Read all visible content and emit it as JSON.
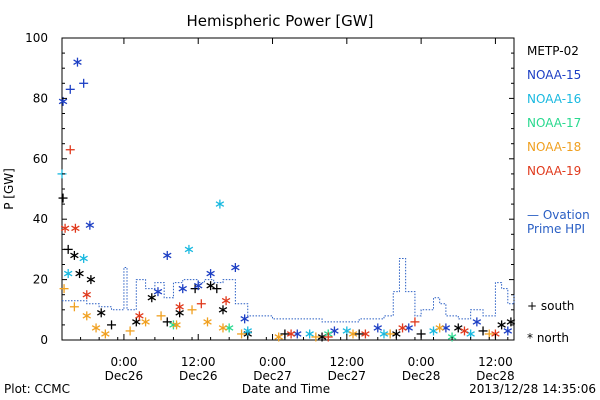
{
  "chart_data": {
    "type": "scatter",
    "title": "Hemispheric Power [GW]",
    "xlabel": "Date and Time",
    "ylabel": "P [GW]",
    "ylim": [
      0,
      100
    ],
    "xlim": [
      "2013-12-25 14:00",
      "2013-12-28 15:00"
    ],
    "yticks": [
      0,
      20,
      40,
      60,
      80,
      100
    ],
    "xticks": [
      {
        "at": "2013-12-26 00:00",
        "time": "0:00",
        "day": "Dec26"
      },
      {
        "at": "2013-12-26 12:00",
        "time": "12:00",
        "day": "Dec26"
      },
      {
        "at": "2013-12-27 00:00",
        "time": "0:00",
        "day": "Dec27"
      },
      {
        "at": "2013-12-27 12:00",
        "time": "12:00",
        "day": "Dec27"
      },
      {
        "at": "2013-12-28 00:00",
        "time": "0:00",
        "day": "Dec28"
      },
      {
        "at": "2013-12-28 12:00",
        "time": "12:00",
        "day": "Dec28"
      }
    ],
    "grid": false,
    "legend_position": "right",
    "series": [
      {
        "name": "METP-02",
        "color": "#000000",
        "points": [
          {
            "x": "2013-12-25 14:10",
            "y": 47,
            "hemisphere": "south"
          },
          {
            "x": "2013-12-25 15:00",
            "y": 30,
            "hemisphere": "south"
          },
          {
            "x": "2013-12-25 16:00",
            "y": 28,
            "hemisphere": "north"
          },
          {
            "x": "2013-12-25 16:50",
            "y": 22,
            "hemisphere": "north"
          },
          {
            "x": "2013-12-25 18:40",
            "y": 20,
            "hemisphere": "north"
          },
          {
            "x": "2013-12-25 20:20",
            "y": 9,
            "hemisphere": "north"
          },
          {
            "x": "2013-12-25 22:00",
            "y": 5,
            "hemisphere": "south"
          },
          {
            "x": "2013-12-26 02:00",
            "y": 6,
            "hemisphere": "north"
          },
          {
            "x": "2013-12-26 04:30",
            "y": 14,
            "hemisphere": "north"
          },
          {
            "x": "2013-12-26 07:00",
            "y": 6,
            "hemisphere": "south"
          },
          {
            "x": "2013-12-26 09:00",
            "y": 9,
            "hemisphere": "north"
          },
          {
            "x": "2013-12-26 11:30",
            "y": 17,
            "hemisphere": "south"
          },
          {
            "x": "2013-12-26 14:00",
            "y": 18,
            "hemisphere": "north"
          },
          {
            "x": "2013-12-26 15:00",
            "y": 17,
            "hemisphere": "south"
          },
          {
            "x": "2013-12-26 16:00",
            "y": 10,
            "hemisphere": "north"
          },
          {
            "x": "2013-12-26 20:00",
            "y": 2,
            "hemisphere": "north"
          },
          {
            "x": "2013-12-27 02:00",
            "y": 2,
            "hemisphere": "south"
          },
          {
            "x": "2013-12-27 08:00",
            "y": 1,
            "hemisphere": "north"
          },
          {
            "x": "2013-12-27 14:00",
            "y": 2,
            "hemisphere": "south"
          },
          {
            "x": "2013-12-27 20:00",
            "y": 2,
            "hemisphere": "north"
          },
          {
            "x": "2013-12-28 00:00",
            "y": 2,
            "hemisphere": "south"
          },
          {
            "x": "2013-12-28 06:00",
            "y": 4,
            "hemisphere": "north"
          },
          {
            "x": "2013-12-28 10:00",
            "y": 3,
            "hemisphere": "south"
          },
          {
            "x": "2013-12-28 13:00",
            "y": 5,
            "hemisphere": "north"
          },
          {
            "x": "2013-12-28 14:30",
            "y": 6,
            "hemisphere": "north"
          }
        ]
      },
      {
        "name": "NOAA-15",
        "color": "#1d3fc4",
        "points": [
          {
            "x": "2013-12-25 14:10",
            "y": 79,
            "hemisphere": "north"
          },
          {
            "x": "2013-12-25 15:20",
            "y": 83,
            "hemisphere": "south"
          },
          {
            "x": "2013-12-25 16:30",
            "y": 92,
            "hemisphere": "north"
          },
          {
            "x": "2013-12-25 17:30",
            "y": 85,
            "hemisphere": "south"
          },
          {
            "x": "2013-12-25 18:30",
            "y": 38,
            "hemisphere": "north"
          },
          {
            "x": "2013-12-26 05:30",
            "y": 16,
            "hemisphere": "north"
          },
          {
            "x": "2013-12-26 07:00",
            "y": 28,
            "hemisphere": "north"
          },
          {
            "x": "2013-12-26 09:30",
            "y": 17,
            "hemisphere": "north"
          },
          {
            "x": "2013-12-26 12:00",
            "y": 18,
            "hemisphere": "north"
          },
          {
            "x": "2013-12-26 14:00",
            "y": 22,
            "hemisphere": "north"
          },
          {
            "x": "2013-12-26 18:00",
            "y": 24,
            "hemisphere": "north"
          },
          {
            "x": "2013-12-26 19:30",
            "y": 7,
            "hemisphere": "north"
          },
          {
            "x": "2013-12-27 04:00",
            "y": 2,
            "hemisphere": "north"
          },
          {
            "x": "2013-12-27 10:00",
            "y": 3,
            "hemisphere": "north"
          },
          {
            "x": "2013-12-27 17:00",
            "y": 4,
            "hemisphere": "north"
          },
          {
            "x": "2013-12-27 22:00",
            "y": 4,
            "hemisphere": "north"
          },
          {
            "x": "2013-12-28 04:00",
            "y": 4,
            "hemisphere": "north"
          },
          {
            "x": "2013-12-28 09:00",
            "y": 6,
            "hemisphere": "north"
          },
          {
            "x": "2013-12-28 14:00",
            "y": 3,
            "hemisphere": "north"
          }
        ]
      },
      {
        "name": "NOAA-16",
        "color": "#19b9e0",
        "points": [
          {
            "x": "2013-12-25 14:00",
            "y": 55,
            "hemisphere": "south"
          },
          {
            "x": "2013-12-25 15:00",
            "y": 22,
            "hemisphere": "north"
          },
          {
            "x": "2013-12-25 17:30",
            "y": 27,
            "hemisphere": "north"
          },
          {
            "x": "2013-12-26 10:30",
            "y": 30,
            "hemisphere": "north"
          },
          {
            "x": "2013-12-26 15:30",
            "y": 45,
            "hemisphere": "north"
          },
          {
            "x": "2013-12-26 20:00",
            "y": 3,
            "hemisphere": "north"
          },
          {
            "x": "2013-12-27 06:00",
            "y": 2,
            "hemisphere": "north"
          },
          {
            "x": "2013-12-27 12:00",
            "y": 3,
            "hemisphere": "north"
          },
          {
            "x": "2013-12-27 18:00",
            "y": 2,
            "hemisphere": "north"
          },
          {
            "x": "2013-12-28 02:00",
            "y": 3,
            "hemisphere": "north"
          },
          {
            "x": "2013-12-28 08:00",
            "y": 2,
            "hemisphere": "north"
          }
        ]
      },
      {
        "name": "NOAA-17",
        "color": "#29d98f",
        "points": [
          {
            "x": "2013-12-26 08:00",
            "y": 5,
            "hemisphere": "north"
          },
          {
            "x": "2013-12-26 17:00",
            "y": 4,
            "hemisphere": "north"
          },
          {
            "x": "2013-12-27 09:00",
            "y": 2,
            "hemisphere": "north"
          },
          {
            "x": "2013-12-28 05:00",
            "y": 1,
            "hemisphere": "north"
          }
        ]
      },
      {
        "name": "NOAA-18",
        "color": "#f0a020",
        "points": [
          {
            "x": "2013-12-25 14:20",
            "y": 17,
            "hemisphere": "south"
          },
          {
            "x": "2013-12-25 16:00",
            "y": 11,
            "hemisphere": "south"
          },
          {
            "x": "2013-12-25 18:00",
            "y": 8,
            "hemisphere": "north"
          },
          {
            "x": "2013-12-25 19:30",
            "y": 4,
            "hemisphere": "north"
          },
          {
            "x": "2013-12-25 21:00",
            "y": 2,
            "hemisphere": "north"
          },
          {
            "x": "2013-12-26 01:00",
            "y": 3,
            "hemisphere": "south"
          },
          {
            "x": "2013-12-26 03:30",
            "y": 6,
            "hemisphere": "north"
          },
          {
            "x": "2013-12-26 06:00",
            "y": 8,
            "hemisphere": "south"
          },
          {
            "x": "2013-12-26 08:30",
            "y": 5,
            "hemisphere": "north"
          },
          {
            "x": "2013-12-26 11:00",
            "y": 10,
            "hemisphere": "south"
          },
          {
            "x": "2013-12-26 13:30",
            "y": 6,
            "hemisphere": "north"
          },
          {
            "x": "2013-12-26 16:00",
            "y": 4,
            "hemisphere": "north"
          },
          {
            "x": "2013-12-26 19:00",
            "y": 2,
            "hemisphere": "south"
          },
          {
            "x": "2013-12-27 01:00",
            "y": 1,
            "hemisphere": "north"
          },
          {
            "x": "2013-12-27 07:00",
            "y": 1,
            "hemisphere": "south"
          },
          {
            "x": "2013-12-27 13:00",
            "y": 2,
            "hemisphere": "north"
          },
          {
            "x": "2013-12-27 19:00",
            "y": 2,
            "hemisphere": "south"
          },
          {
            "x": "2013-12-28 03:00",
            "y": 4,
            "hemisphere": "north"
          },
          {
            "x": "2013-12-28 11:00",
            "y": 2,
            "hemisphere": "south"
          }
        ]
      },
      {
        "name": "NOAA-19",
        "color": "#e0391c",
        "points": [
          {
            "x": "2013-12-25 14:30",
            "y": 37,
            "hemisphere": "north"
          },
          {
            "x": "2013-12-25 15:20",
            "y": 63,
            "hemisphere": "south"
          },
          {
            "x": "2013-12-25 16:10",
            "y": 37,
            "hemisphere": "north"
          },
          {
            "x": "2013-12-25 18:00",
            "y": 15,
            "hemisphere": "north"
          },
          {
            "x": "2013-12-26 02:30",
            "y": 8,
            "hemisphere": "north"
          },
          {
            "x": "2013-12-26 09:00",
            "y": 11,
            "hemisphere": "north"
          },
          {
            "x": "2013-12-26 12:30",
            "y": 12,
            "hemisphere": "south"
          },
          {
            "x": "2013-12-26 16:30",
            "y": 13,
            "hemisphere": "north"
          },
          {
            "x": "2013-12-27 03:00",
            "y": 2,
            "hemisphere": "north"
          },
          {
            "x": "2013-12-27 09:00",
            "y": 1,
            "hemisphere": "south"
          },
          {
            "x": "2013-12-27 15:00",
            "y": 2,
            "hemisphere": "north"
          },
          {
            "x": "2013-12-27 21:00",
            "y": 4,
            "hemisphere": "north"
          },
          {
            "x": "2013-12-27 23:00",
            "y": 6,
            "hemisphere": "south"
          },
          {
            "x": "2013-12-28 07:00",
            "y": 3,
            "hemisphere": "north"
          },
          {
            "x": "2013-12-28 12:00",
            "y": 2,
            "hemisphere": "north"
          }
        ]
      },
      {
        "name": "Ovation Prime HPI",
        "type": "step",
        "dashed": true,
        "color": "#2a5fc4",
        "points": [
          {
            "x": "2013-12-25 14:00",
            "y": 13
          },
          {
            "x": "2013-12-25 18:00",
            "y": 12
          },
          {
            "x": "2013-12-25 20:00",
            "y": 11
          },
          {
            "x": "2013-12-25 22:00",
            "y": 10
          },
          {
            "x": "2013-12-26 00:00",
            "y": 24
          },
          {
            "x": "2013-12-26 00:30",
            "y": 10
          },
          {
            "x": "2013-12-26 02:00",
            "y": 20
          },
          {
            "x": "2013-12-26 03:30",
            "y": 17
          },
          {
            "x": "2013-12-26 05:00",
            "y": 19
          },
          {
            "x": "2013-12-26 06:30",
            "y": 14
          },
          {
            "x": "2013-12-26 08:00",
            "y": 19
          },
          {
            "x": "2013-12-26 09:30",
            "y": 20
          },
          {
            "x": "2013-12-26 11:00",
            "y": 20
          },
          {
            "x": "2013-12-26 12:00",
            "y": 19
          },
          {
            "x": "2013-12-26 13:00",
            "y": 20
          },
          {
            "x": "2013-12-26 14:30",
            "y": 19
          },
          {
            "x": "2013-12-26 16:00",
            "y": 20
          },
          {
            "x": "2013-12-26 18:00",
            "y": 12
          },
          {
            "x": "2013-12-26 20:00",
            "y": 8
          },
          {
            "x": "2013-12-27 00:00",
            "y": 7
          },
          {
            "x": "2013-12-27 08:00",
            "y": 6
          },
          {
            "x": "2013-12-27 14:00",
            "y": 7
          },
          {
            "x": "2013-12-27 18:00",
            "y": 8
          },
          {
            "x": "2013-12-27 19:30",
            "y": 16
          },
          {
            "x": "2013-12-27 20:30",
            "y": 27
          },
          {
            "x": "2013-12-27 21:30",
            "y": 16
          },
          {
            "x": "2013-12-27 23:00",
            "y": 8
          },
          {
            "x": "2013-12-28 00:00",
            "y": 10
          },
          {
            "x": "2013-12-28 02:00",
            "y": 14
          },
          {
            "x": "2013-12-28 03:00",
            "y": 12
          },
          {
            "x": "2013-12-28 04:00",
            "y": 8
          },
          {
            "x": "2013-12-28 06:00",
            "y": 7
          },
          {
            "x": "2013-12-28 08:00",
            "y": 10
          },
          {
            "x": "2013-12-28 10:00",
            "y": 8
          },
          {
            "x": "2013-12-28 12:00",
            "y": 19
          },
          {
            "x": "2013-12-28 13:00",
            "y": 17
          },
          {
            "x": "2013-12-28 14:00",
            "y": 12
          },
          {
            "x": "2013-12-28 15:00",
            "y": 15
          }
        ]
      }
    ],
    "legend": {
      "satellites": [
        "METP-02",
        "NOAA-15",
        "NOAA-16",
        "NOAA-17",
        "NOAA-18",
        "NOAA-19"
      ],
      "model_label_line1": "— Ovation",
      "model_label_line2": "Prime HPI",
      "markers": [
        {
          "symbol": "+",
          "label": "south"
        },
        {
          "symbol": "*",
          "label": "north"
        }
      ]
    }
  },
  "footer": {
    "left": "Plot: CCMC",
    "right": "2013/12/28 14:35:06"
  }
}
